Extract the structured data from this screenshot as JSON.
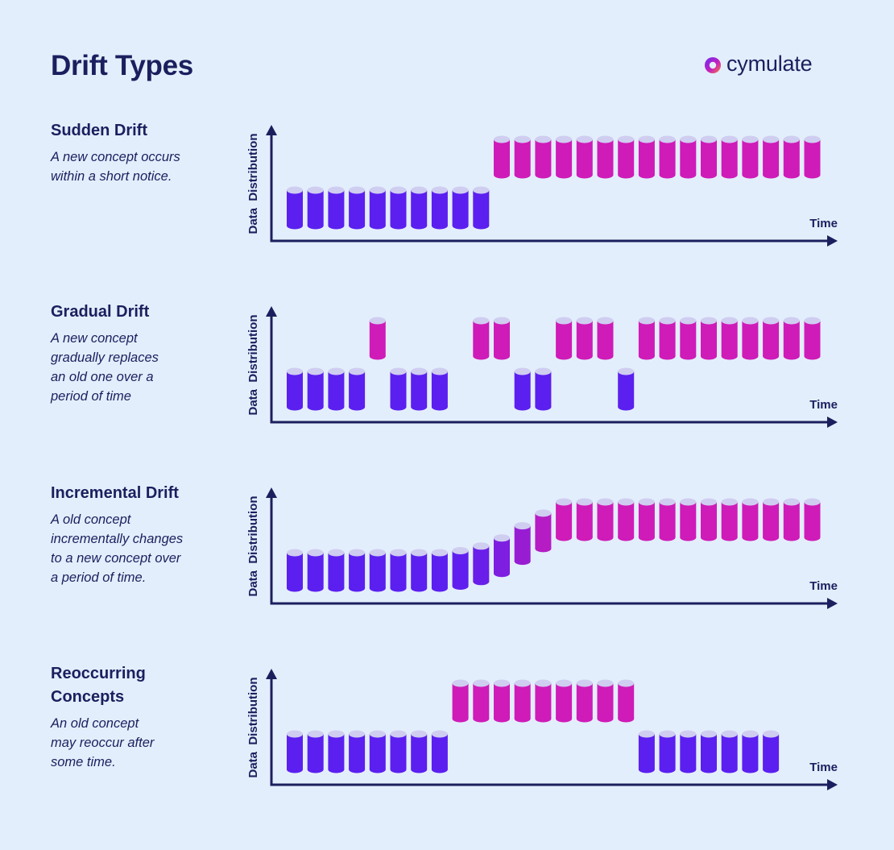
{
  "title": "Drift Types",
  "brand": {
    "name": "cymulate",
    "icon": "cymulate-logo-icon"
  },
  "colors": {
    "background": "#e3eefc",
    "text": "#1b1f5e",
    "old_concept": "#5b1ff0",
    "new_concept": "#cf1bb8",
    "cylinder_top": "#cfcdf0",
    "axis": "#1b1f5e"
  },
  "axis": {
    "y_label": "Data  Distribution",
    "x_label": "Time"
  },
  "sections": [
    {
      "title": "Sudden Drift",
      "description": "A new concept occurs\nwithin a short notice."
    },
    {
      "title": "Gradual Drift",
      "description": "A new concept\ngradually replaces\nan old one over a\nperiod of time"
    },
    {
      "title": "Incremental  Drift",
      "description": "A old concept\nincrementally changes\nto a new concept over\na period of time."
    },
    {
      "title": "Reoccurring\nConcepts",
      "description": "An old concept\nmay reoccur after\nsome time."
    }
  ],
  "chart_data": [
    {
      "type": "diagram",
      "name": "sudden",
      "slots": 26,
      "levels": [
        0,
        0,
        0,
        0,
        0,
        0,
        0,
        0,
        0,
        0,
        1,
        1,
        1,
        1,
        1,
        1,
        1,
        1,
        1,
        1,
        1,
        1,
        1,
        1,
        1,
        1
      ]
    },
    {
      "type": "diagram",
      "name": "gradual",
      "slots": 26,
      "levels": [
        0,
        0,
        0,
        0,
        1,
        0,
        0,
        0,
        null,
        1,
        1,
        0,
        0,
        1,
        1,
        1,
        0,
        1,
        1,
        1,
        1,
        1,
        1,
        1,
        1,
        1
      ]
    },
    {
      "type": "diagram",
      "name": "incremental",
      "slots": 26,
      "levels": [
        0,
        0,
        0,
        0,
        0,
        0,
        0,
        0,
        0.04,
        0.13,
        0.29,
        0.53,
        0.78,
        1,
        1,
        1,
        1,
        1,
        1,
        1,
        1,
        1,
        1,
        1,
        1,
        1
      ]
    },
    {
      "type": "diagram",
      "name": "reoccurring",
      "slots": 26,
      "levels": [
        0,
        0,
        0,
        0,
        0,
        0,
        0,
        0,
        1,
        1,
        1,
        1,
        1,
        1,
        1,
        1,
        1,
        0,
        0,
        0,
        0,
        0,
        0,
        0,
        null,
        null
      ]
    }
  ]
}
